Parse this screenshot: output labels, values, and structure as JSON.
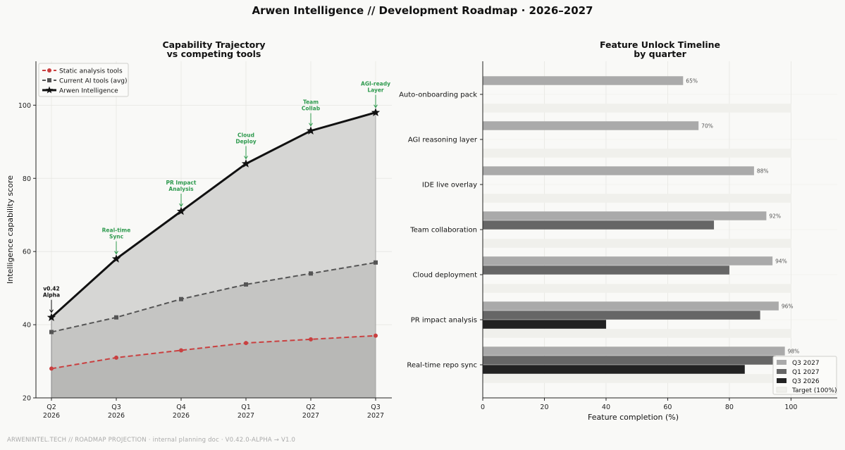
{
  "title": "Arwen Intelligence  //  Development Roadmap  ·  2026–2027",
  "footer": "ARWENINTEL.TECH  //  ROADMAP PROJECTION  ·  internal planning doc  ·  V0.42.0-ALPHA → V1.0",
  "chart_data": [
    {
      "type": "line",
      "title": [
        "Capability Trajectory",
        "vs competing tools"
      ],
      "xlabel": "",
      "ylabel": "Intelligence capability score",
      "ylim": [
        20,
        112
      ],
      "yticks": [
        20,
        40,
        60,
        80,
        100
      ],
      "categories": [
        [
          "Q2",
          "2026"
        ],
        [
          "Q3",
          "2026"
        ],
        [
          "Q4",
          "2026"
        ],
        [
          "Q1",
          "2027"
        ],
        [
          "Q2",
          "2027"
        ],
        [
          "Q3",
          "2027"
        ]
      ],
      "series": [
        {
          "name": "Static analysis tools",
          "values": [
            28,
            31,
            33,
            35,
            36,
            37
          ],
          "color": "#c94040"
        },
        {
          "name": "Current AI tools (avg)",
          "values": [
            38,
            42,
            47,
            51,
            54,
            57
          ],
          "color": "#555555"
        },
        {
          "name": "Arwen Intelligence",
          "values": [
            42,
            58,
            71,
            84,
            93,
            98
          ],
          "color": "#111111"
        }
      ],
      "annotations": [
        {
          "index": 0,
          "lines": [
            "v0.42",
            "Alpha"
          ],
          "color": "#111111"
        },
        {
          "index": 1,
          "lines": [
            "Real-time",
            "Sync"
          ],
          "color": "#2e9a4e"
        },
        {
          "index": 2,
          "lines": [
            "PR Impact",
            "Analysis"
          ],
          "color": "#2e9a4e"
        },
        {
          "index": 3,
          "lines": [
            "Cloud",
            "Deploy"
          ],
          "color": "#2e9a4e"
        },
        {
          "index": 4,
          "lines": [
            "Team",
            "Collab"
          ],
          "color": "#2e9a4e"
        },
        {
          "index": 5,
          "lines": [
            "AGI-ready",
            "Layer"
          ],
          "color": "#2e9a4e"
        }
      ],
      "legend": "top-left",
      "grid": true
    },
    {
      "type": "bar",
      "orientation": "horizontal",
      "title": [
        "Feature Unlock Timeline",
        "by quarter"
      ],
      "xlabel": "Feature completion (%)",
      "xlim": [
        0,
        115
      ],
      "xticks": [
        0,
        20,
        40,
        60,
        80,
        100
      ],
      "categories": [
        "Real-time repo sync",
        "PR impact analysis",
        "Cloud deployment",
        "Team collaboration",
        "IDE live overlay",
        "AGI reasoning layer",
        "Auto-onboarding pack"
      ],
      "series": [
        {
          "name": "Q3 2027",
          "values": [
            98,
            96,
            94,
            92,
            88,
            70,
            65
          ],
          "color": "#aaaaaa",
          "labels": [
            "98%",
            "96%",
            "94%",
            "92%",
            "88%",
            "70%",
            "65%"
          ]
        },
        {
          "name": "Q1 2027",
          "values": [
            95,
            90,
            80,
            75,
            0,
            0,
            0
          ],
          "color": "#666666"
        },
        {
          "name": "Q3 2026",
          "values": [
            85,
            40,
            0,
            0,
            0,
            0,
            0
          ],
          "color": "#222222"
        },
        {
          "name": "Target (100%)",
          "values": [
            100,
            100,
            100,
            100,
            100,
            100,
            100
          ],
          "color": "#f0f0ec"
        }
      ],
      "legend": "bottom-right",
      "grid": true
    }
  ]
}
